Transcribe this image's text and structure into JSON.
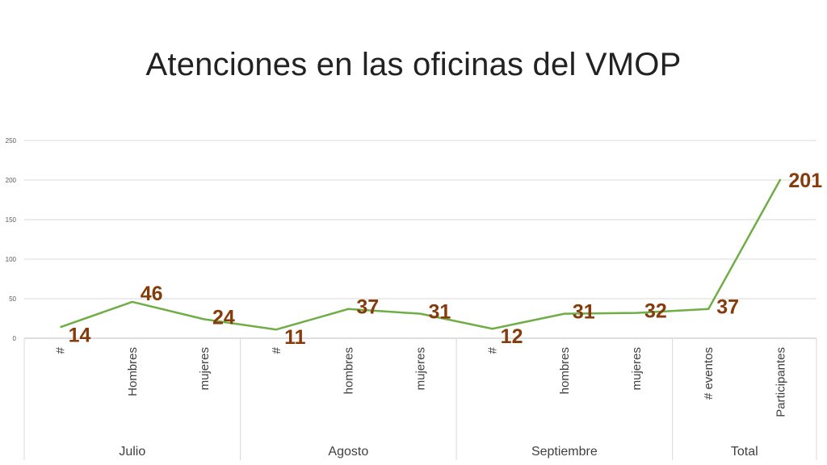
{
  "slide": {
    "title": "Atenciones en las oficinas del VMOP"
  },
  "chart_data": {
    "type": "line",
    "title": "",
    "xlabel": "",
    "ylabel": "",
    "ylim": [
      0,
      250
    ],
    "yticks": [
      0,
      50,
      100,
      150,
      200,
      250
    ],
    "grid": true,
    "legend": "none",
    "line_color": "#70ad47",
    "label_color": "#843c0c",
    "groups": [
      {
        "name": "Julio",
        "categories": [
          "#",
          "Hombres",
          "mujeres"
        ]
      },
      {
        "name": "Agosto",
        "categories": [
          "#",
          "hombres",
          "mujeres"
        ]
      },
      {
        "name": "Septiembre",
        "categories": [
          "#",
          "hombres",
          "mujeres"
        ]
      },
      {
        "name": "Total",
        "categories": [
          "# eventos",
          "Participantes"
        ]
      }
    ],
    "categories": [
      "#",
      "Hombres",
      "mujeres",
      "#",
      "hombres",
      "mujeres",
      "#",
      "hombres",
      "mujeres",
      "# eventos",
      "Participantes"
    ],
    "values": [
      14,
      46,
      24,
      11,
      37,
      31,
      12,
      31,
      32,
      37,
      201
    ]
  }
}
